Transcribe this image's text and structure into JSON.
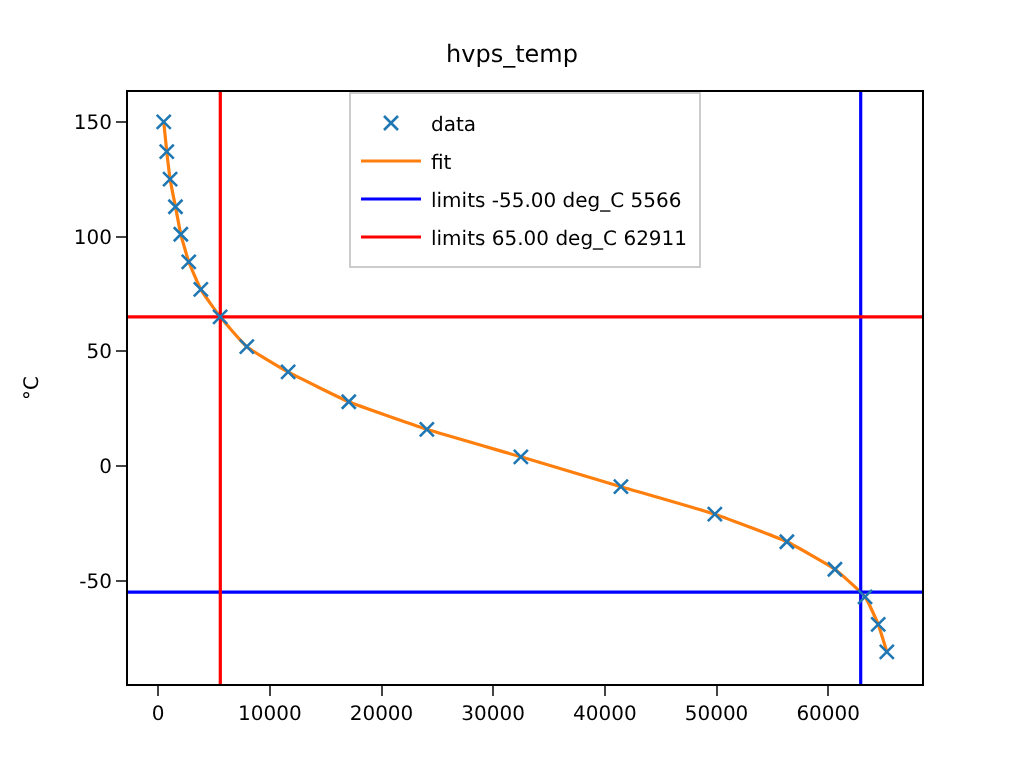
{
  "chart_data": {
    "type": "scatter",
    "title": "hvps_temp",
    "ylabel": "°C",
    "xlim": [
      -2700,
      68400
    ],
    "ylim": [
      -95,
      163
    ],
    "xticks": [
      0,
      10000,
      20000,
      30000,
      40000,
      50000,
      60000
    ],
    "yticks": [
      -50,
      0,
      50,
      100,
      150
    ],
    "legend": "top",
    "series": [
      {
        "name": "data",
        "marker": "cross",
        "color": "#1f77b4",
        "x": [
          500,
          770,
          1070,
          1550,
          2030,
          2740,
          3820,
          5550,
          7940,
          11640,
          17070,
          24060,
          32480,
          41440,
          49850,
          56300,
          60600,
          63300,
          64480,
          65250
        ],
        "values": [
          150,
          137,
          125,
          113,
          101,
          89,
          77,
          65,
          52,
          41,
          28,
          16,
          4,
          -9,
          -21,
          -33,
          -45,
          -57,
          -69,
          -81
        ]
      },
      {
        "name": "fit",
        "type": "line",
        "marker": "none",
        "color": "#ff7f0e",
        "x": [
          500,
          770,
          1070,
          1550,
          2030,
          2740,
          3820,
          5550,
          7940,
          11640,
          17070,
          24060,
          32480,
          41440,
          49850,
          56300,
          60600,
          63300,
          64480,
          65250
        ],
        "values": [
          150,
          137,
          125,
          113,
          101,
          89,
          77,
          65,
          52,
          41,
          28,
          16,
          4,
          -9,
          -21,
          -33,
          -45,
          -57,
          -69,
          -81
        ]
      }
    ],
    "ref_lines": [
      {
        "axis": "y",
        "value": -55,
        "label": "limits -55.00 deg_C 5566",
        "color": "#0000ff"
      },
      {
        "axis": "x",
        "value": 62911,
        "color": "#0000ff"
      },
      {
        "axis": "y",
        "value": 65,
        "label": "limits 65.00 deg_C 62911",
        "color": "#ff0000"
      },
      {
        "axis": "x",
        "value": 5566,
        "color": "#ff0000"
      }
    ]
  }
}
